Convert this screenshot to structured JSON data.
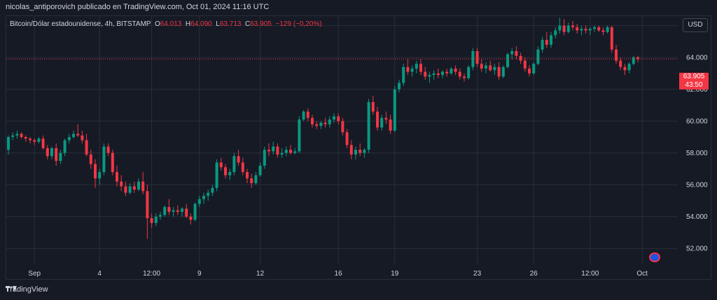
{
  "header": {
    "publisher_line": "nicolas_antiporovich publicado en TradingView.com, Oct 01, 2024 11:16 UTC"
  },
  "legend": {
    "symbol": "Bitcoin/Dólar estadounidense, 4h, BITSTAMP",
    "open_label": "O",
    "open": "64.013",
    "high_label": "H",
    "high": "64.090",
    "low_label": "L",
    "low": "63.713",
    "close_label": "C",
    "close": "63.905",
    "change": "−129 (−0,20%)"
  },
  "currency_button": {
    "label": "USD"
  },
  "price_tag": {
    "price": "63.905",
    "countdown": "43:50"
  },
  "footer": {
    "brand": "TradingView"
  },
  "colors": {
    "up": "#089981",
    "down": "#f23645",
    "background": "#161a25",
    "grid": "#2a2e39",
    "text": "#d1d4dc"
  },
  "chart_data": {
    "type": "candlestick",
    "ylim": [
      51.0,
      66.6
    ],
    "y_ticks": [
      52,
      54,
      56,
      58,
      60,
      62,
      64,
      66
    ],
    "y_tick_labels": [
      "52.000",
      "54.000",
      "56.000",
      "58.000",
      "60.000",
      "62.000",
      "64.000",
      "66.000"
    ],
    "x_tick_labels": [
      "Sep",
      "4",
      "12:00",
      "9",
      "12",
      "16",
      "19",
      "23",
      "26",
      "12:00",
      "Oct"
    ],
    "x_tick_index": [
      6,
      21,
      33,
      44,
      58,
      76,
      89,
      108,
      121,
      134,
      146
    ],
    "last_price": 63.905,
    "ohlc": [
      [
        58.2,
        59.1,
        57.9,
        59.0
      ],
      [
        59.0,
        59.3,
        58.8,
        59.1
      ],
      [
        59.1,
        59.4,
        58.9,
        59.2
      ],
      [
        59.2,
        59.3,
        58.9,
        59.0
      ],
      [
        59.0,
        59.1,
        58.7,
        58.9
      ],
      [
        58.9,
        59.0,
        58.6,
        58.8
      ],
      [
        58.8,
        58.9,
        58.5,
        58.7
      ],
      [
        58.7,
        59.0,
        58.6,
        58.9
      ],
      [
        58.9,
        59.1,
        58.2,
        58.3
      ],
      [
        58.3,
        58.5,
        57.6,
        57.8
      ],
      [
        57.8,
        58.4,
        57.6,
        58.3
      ],
      [
        58.3,
        58.6,
        57.2,
        57.5
      ],
      [
        57.5,
        58.2,
        57.3,
        58.0
      ],
      [
        58.0,
        58.9,
        57.8,
        58.8
      ],
      [
        58.8,
        59.2,
        58.6,
        59.0
      ],
      [
        59.0,
        59.4,
        58.9,
        59.2
      ],
      [
        59.2,
        59.8,
        59.0,
        59.1
      ],
      [
        59.1,
        59.4,
        58.6,
        58.8
      ],
      [
        58.8,
        59.2,
        57.8,
        57.9
      ],
      [
        57.9,
        58.2,
        57.0,
        57.3
      ],
      [
        57.3,
        57.6,
        55.8,
        56.4
      ],
      [
        56.4,
        57.0,
        56.0,
        56.8
      ],
      [
        56.8,
        58.6,
        56.6,
        58.4
      ],
      [
        58.4,
        58.6,
        57.8,
        58.0
      ],
      [
        58.0,
        58.2,
        56.6,
        56.8
      ],
      [
        56.8,
        57.2,
        55.9,
        56.2
      ],
      [
        56.2,
        56.6,
        55.6,
        55.9
      ],
      [
        55.9,
        56.2,
        55.3,
        55.5
      ],
      [
        55.5,
        56.1,
        55.4,
        55.9
      ],
      [
        55.9,
        56.2,
        55.5,
        55.7
      ],
      [
        55.7,
        56.4,
        55.6,
        56.2
      ],
      [
        56.2,
        56.8,
        55.4,
        55.6
      ],
      [
        55.6,
        56.0,
        52.6,
        53.9
      ],
      [
        53.9,
        54.2,
        53.3,
        53.6
      ],
      [
        53.6,
        54.2,
        53.4,
        54.0
      ],
      [
        54.0,
        54.3,
        53.8,
        54.1
      ],
      [
        54.1,
        54.7,
        54.0,
        54.6
      ],
      [
        54.6,
        55.1,
        54.1,
        54.3
      ],
      [
        54.3,
        54.6,
        54.0,
        54.4
      ],
      [
        54.4,
        54.7,
        54.1,
        54.3
      ],
      [
        54.3,
        54.6,
        54.0,
        54.5
      ],
      [
        54.5,
        54.8,
        53.9,
        54.0
      ],
      [
        54.0,
        54.2,
        53.5,
        53.8
      ],
      [
        53.8,
        54.9,
        53.7,
        54.8
      ],
      [
        54.8,
        55.3,
        54.6,
        55.1
      ],
      [
        55.1,
        55.5,
        54.8,
        55.3
      ],
      [
        55.3,
        55.7,
        55.0,
        55.5
      ],
      [
        55.5,
        56.0,
        55.3,
        55.8
      ],
      [
        55.8,
        57.6,
        55.6,
        57.4
      ],
      [
        57.4,
        57.7,
        56.9,
        57.1
      ],
      [
        57.1,
        57.3,
        56.4,
        56.6
      ],
      [
        56.6,
        57.0,
        56.3,
        56.8
      ],
      [
        56.8,
        58.0,
        56.6,
        57.8
      ],
      [
        57.8,
        58.2,
        57.2,
        57.4
      ],
      [
        57.4,
        57.7,
        56.6,
        56.8
      ],
      [
        56.8,
        57.0,
        56.1,
        56.4
      ],
      [
        56.4,
        56.7,
        55.8,
        56.1
      ],
      [
        56.1,
        56.8,
        56.0,
        56.6
      ],
      [
        56.6,
        57.4,
        56.5,
        57.2
      ],
      [
        57.2,
        58.4,
        57.0,
        58.2
      ],
      [
        58.2,
        58.6,
        57.8,
        58.1
      ],
      [
        58.1,
        58.7,
        57.9,
        58.4
      ],
      [
        58.4,
        58.6,
        57.7,
        57.9
      ],
      [
        57.9,
        58.3,
        57.7,
        58.0
      ],
      [
        58.0,
        58.4,
        57.8,
        58.2
      ],
      [
        58.2,
        58.5,
        57.9,
        58.0
      ],
      [
        58.0,
        58.3,
        57.9,
        58.1
      ],
      [
        58.1,
        60.3,
        58.0,
        60.1
      ],
      [
        60.1,
        60.7,
        60.0,
        60.6
      ],
      [
        60.6,
        60.8,
        60.0,
        60.2
      ],
      [
        60.2,
        60.4,
        59.6,
        59.8
      ],
      [
        59.8,
        60.0,
        59.5,
        59.7
      ],
      [
        59.7,
        60.0,
        59.5,
        59.9
      ],
      [
        59.9,
        60.2,
        59.6,
        59.8
      ],
      [
        59.8,
        60.3,
        59.6,
        60.1
      ],
      [
        60.1,
        60.5,
        59.9,
        60.3
      ],
      [
        60.3,
        60.5,
        59.8,
        60.0
      ],
      [
        60.0,
        60.2,
        59.1,
        59.3
      ],
      [
        59.3,
        59.5,
        58.3,
        58.5
      ],
      [
        58.5,
        58.8,
        57.6,
        57.9
      ],
      [
        57.9,
        58.4,
        57.6,
        58.2
      ],
      [
        58.2,
        58.6,
        57.8,
        58.0
      ],
      [
        58.0,
        58.3,
        57.7,
        58.2
      ],
      [
        58.2,
        61.4,
        58.0,
        61.2
      ],
      [
        61.2,
        61.6,
        60.4,
        60.6
      ],
      [
        60.6,
        60.9,
        59.4,
        59.6
      ],
      [
        59.6,
        60.4,
        59.4,
        60.2
      ],
      [
        60.2,
        60.6,
        59.8,
        60.1
      ],
      [
        60.1,
        60.4,
        59.2,
        59.4
      ],
      [
        59.4,
        62.2,
        59.3,
        62.0
      ],
      [
        62.0,
        62.6,
        61.8,
        62.4
      ],
      [
        62.4,
        63.6,
        62.2,
        63.4
      ],
      [
        63.4,
        63.9,
        62.9,
        63.1
      ],
      [
        63.1,
        63.5,
        62.8,
        63.3
      ],
      [
        63.3,
        63.8,
        63.0,
        63.6
      ],
      [
        63.6,
        63.9,
        62.9,
        63.1
      ],
      [
        63.1,
        63.4,
        62.6,
        62.8
      ],
      [
        62.8,
        63.1,
        62.4,
        62.9
      ],
      [
        62.9,
        63.2,
        62.6,
        63.0
      ],
      [
        63.0,
        63.3,
        62.7,
        62.9
      ],
      [
        62.9,
        63.2,
        62.7,
        63.1
      ],
      [
        63.1,
        63.3,
        62.8,
        63.0
      ],
      [
        63.0,
        63.4,
        62.9,
        63.3
      ],
      [
        63.3,
        63.5,
        62.9,
        63.1
      ],
      [
        63.1,
        63.3,
        62.6,
        62.8
      ],
      [
        62.8,
        63.0,
        62.5,
        62.7
      ],
      [
        62.7,
        63.5,
        62.6,
        63.4
      ],
      [
        63.4,
        64.6,
        63.2,
        64.4
      ],
      [
        64.4,
        64.6,
        63.4,
        63.6
      ],
      [
        63.6,
        63.9,
        63.1,
        63.3
      ],
      [
        63.3,
        63.7,
        63.0,
        63.5
      ],
      [
        63.5,
        63.8,
        63.1,
        63.2
      ],
      [
        63.2,
        63.6,
        62.9,
        63.4
      ],
      [
        63.4,
        63.7,
        62.6,
        62.8
      ],
      [
        62.8,
        63.5,
        62.7,
        63.4
      ],
      [
        63.4,
        64.3,
        63.3,
        64.2
      ],
      [
        64.2,
        64.6,
        63.9,
        64.4
      ],
      [
        64.4,
        64.7,
        63.9,
        64.1
      ],
      [
        64.1,
        64.3,
        63.6,
        63.8
      ],
      [
        63.8,
        64.0,
        63.1,
        63.3
      ],
      [
        63.3,
        63.5,
        62.8,
        63.0
      ],
      [
        63.0,
        63.7,
        62.9,
        63.6
      ],
      [
        63.6,
        64.7,
        63.5,
        64.5
      ],
      [
        64.5,
        65.3,
        64.3,
        65.1
      ],
      [
        65.1,
        65.6,
        64.6,
        64.8
      ],
      [
        64.8,
        65.6,
        64.6,
        65.4
      ],
      [
        65.4,
        65.9,
        65.2,
        65.7
      ],
      [
        65.7,
        66.5,
        65.5,
        66.0
      ],
      [
        66.0,
        66.4,
        65.4,
        65.6
      ],
      [
        65.6,
        66.2,
        65.5,
        66.0
      ],
      [
        66.0,
        66.3,
        65.7,
        65.9
      ],
      [
        65.9,
        66.1,
        65.5,
        65.7
      ],
      [
        65.7,
        66.0,
        65.4,
        65.8
      ],
      [
        65.8,
        66.0,
        65.5,
        65.7
      ],
      [
        65.7,
        65.9,
        65.4,
        65.8
      ],
      [
        65.8,
        66.0,
        65.6,
        65.9
      ],
      [
        65.9,
        66.0,
        65.6,
        65.7
      ],
      [
        65.7,
        65.9,
        65.4,
        65.6
      ],
      [
        65.6,
        66.0,
        65.5,
        65.9
      ],
      [
        65.9,
        66.0,
        64.3,
        64.5
      ],
      [
        64.5,
        64.8,
        63.6,
        63.8
      ],
      [
        63.8,
        64.0,
        63.2,
        63.4
      ],
      [
        63.4,
        63.6,
        62.9,
        63.2
      ],
      [
        63.2,
        63.7,
        63.0,
        63.6
      ],
      [
        63.6,
        64.1,
        63.5,
        64.0
      ],
      [
        64.0,
        64.1,
        63.7,
        63.9
      ]
    ]
  }
}
